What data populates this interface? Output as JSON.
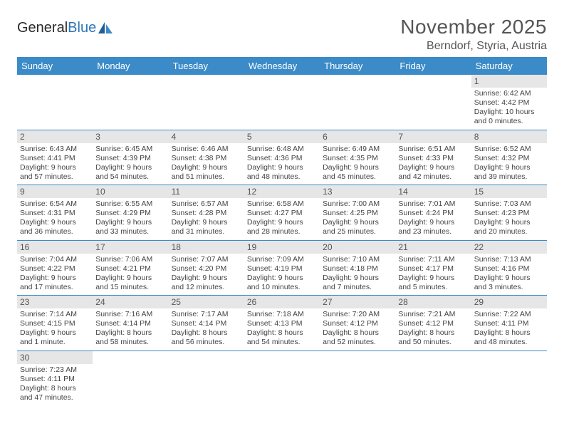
{
  "logo": {
    "text1": "General",
    "text2": "Blue"
  },
  "title": "November 2025",
  "location": "Berndorf, Styria, Austria",
  "colors": {
    "header_bg": "#3b8bc8",
    "header_text": "#ffffff",
    "daynum_bg": "#e6e6e6",
    "text": "#444444",
    "rule": "#3b8bc8"
  },
  "day_labels": [
    "Sunday",
    "Monday",
    "Tuesday",
    "Wednesday",
    "Thursday",
    "Friday",
    "Saturday"
  ],
  "weeks": [
    [
      {
        "n": "",
        "sr": "",
        "ss": "",
        "dl": ""
      },
      {
        "n": "",
        "sr": "",
        "ss": "",
        "dl": ""
      },
      {
        "n": "",
        "sr": "",
        "ss": "",
        "dl": ""
      },
      {
        "n": "",
        "sr": "",
        "ss": "",
        "dl": ""
      },
      {
        "n": "",
        "sr": "",
        "ss": "",
        "dl": ""
      },
      {
        "n": "",
        "sr": "",
        "ss": "",
        "dl": ""
      },
      {
        "n": "1",
        "sr": "Sunrise: 6:42 AM",
        "ss": "Sunset: 4:42 PM",
        "dl": "Daylight: 10 hours and 0 minutes."
      }
    ],
    [
      {
        "n": "2",
        "sr": "Sunrise: 6:43 AM",
        "ss": "Sunset: 4:41 PM",
        "dl": "Daylight: 9 hours and 57 minutes."
      },
      {
        "n": "3",
        "sr": "Sunrise: 6:45 AM",
        "ss": "Sunset: 4:39 PM",
        "dl": "Daylight: 9 hours and 54 minutes."
      },
      {
        "n": "4",
        "sr": "Sunrise: 6:46 AM",
        "ss": "Sunset: 4:38 PM",
        "dl": "Daylight: 9 hours and 51 minutes."
      },
      {
        "n": "5",
        "sr": "Sunrise: 6:48 AM",
        "ss": "Sunset: 4:36 PM",
        "dl": "Daylight: 9 hours and 48 minutes."
      },
      {
        "n": "6",
        "sr": "Sunrise: 6:49 AM",
        "ss": "Sunset: 4:35 PM",
        "dl": "Daylight: 9 hours and 45 minutes."
      },
      {
        "n": "7",
        "sr": "Sunrise: 6:51 AM",
        "ss": "Sunset: 4:33 PM",
        "dl": "Daylight: 9 hours and 42 minutes."
      },
      {
        "n": "8",
        "sr": "Sunrise: 6:52 AM",
        "ss": "Sunset: 4:32 PM",
        "dl": "Daylight: 9 hours and 39 minutes."
      }
    ],
    [
      {
        "n": "9",
        "sr": "Sunrise: 6:54 AM",
        "ss": "Sunset: 4:31 PM",
        "dl": "Daylight: 9 hours and 36 minutes."
      },
      {
        "n": "10",
        "sr": "Sunrise: 6:55 AM",
        "ss": "Sunset: 4:29 PM",
        "dl": "Daylight: 9 hours and 33 minutes."
      },
      {
        "n": "11",
        "sr": "Sunrise: 6:57 AM",
        "ss": "Sunset: 4:28 PM",
        "dl": "Daylight: 9 hours and 31 minutes."
      },
      {
        "n": "12",
        "sr": "Sunrise: 6:58 AM",
        "ss": "Sunset: 4:27 PM",
        "dl": "Daylight: 9 hours and 28 minutes."
      },
      {
        "n": "13",
        "sr": "Sunrise: 7:00 AM",
        "ss": "Sunset: 4:25 PM",
        "dl": "Daylight: 9 hours and 25 minutes."
      },
      {
        "n": "14",
        "sr": "Sunrise: 7:01 AM",
        "ss": "Sunset: 4:24 PM",
        "dl": "Daylight: 9 hours and 23 minutes."
      },
      {
        "n": "15",
        "sr": "Sunrise: 7:03 AM",
        "ss": "Sunset: 4:23 PM",
        "dl": "Daylight: 9 hours and 20 minutes."
      }
    ],
    [
      {
        "n": "16",
        "sr": "Sunrise: 7:04 AM",
        "ss": "Sunset: 4:22 PM",
        "dl": "Daylight: 9 hours and 17 minutes."
      },
      {
        "n": "17",
        "sr": "Sunrise: 7:06 AM",
        "ss": "Sunset: 4:21 PM",
        "dl": "Daylight: 9 hours and 15 minutes."
      },
      {
        "n": "18",
        "sr": "Sunrise: 7:07 AM",
        "ss": "Sunset: 4:20 PM",
        "dl": "Daylight: 9 hours and 12 minutes."
      },
      {
        "n": "19",
        "sr": "Sunrise: 7:09 AM",
        "ss": "Sunset: 4:19 PM",
        "dl": "Daylight: 9 hours and 10 minutes."
      },
      {
        "n": "20",
        "sr": "Sunrise: 7:10 AM",
        "ss": "Sunset: 4:18 PM",
        "dl": "Daylight: 9 hours and 7 minutes."
      },
      {
        "n": "21",
        "sr": "Sunrise: 7:11 AM",
        "ss": "Sunset: 4:17 PM",
        "dl": "Daylight: 9 hours and 5 minutes."
      },
      {
        "n": "22",
        "sr": "Sunrise: 7:13 AM",
        "ss": "Sunset: 4:16 PM",
        "dl": "Daylight: 9 hours and 3 minutes."
      }
    ],
    [
      {
        "n": "23",
        "sr": "Sunrise: 7:14 AM",
        "ss": "Sunset: 4:15 PM",
        "dl": "Daylight: 9 hours and 1 minute."
      },
      {
        "n": "24",
        "sr": "Sunrise: 7:16 AM",
        "ss": "Sunset: 4:14 PM",
        "dl": "Daylight: 8 hours and 58 minutes."
      },
      {
        "n": "25",
        "sr": "Sunrise: 7:17 AM",
        "ss": "Sunset: 4:14 PM",
        "dl": "Daylight: 8 hours and 56 minutes."
      },
      {
        "n": "26",
        "sr": "Sunrise: 7:18 AM",
        "ss": "Sunset: 4:13 PM",
        "dl": "Daylight: 8 hours and 54 minutes."
      },
      {
        "n": "27",
        "sr": "Sunrise: 7:20 AM",
        "ss": "Sunset: 4:12 PM",
        "dl": "Daylight: 8 hours and 52 minutes."
      },
      {
        "n": "28",
        "sr": "Sunrise: 7:21 AM",
        "ss": "Sunset: 4:12 PM",
        "dl": "Daylight: 8 hours and 50 minutes."
      },
      {
        "n": "29",
        "sr": "Sunrise: 7:22 AM",
        "ss": "Sunset: 4:11 PM",
        "dl": "Daylight: 8 hours and 48 minutes."
      }
    ],
    [
      {
        "n": "30",
        "sr": "Sunrise: 7:23 AM",
        "ss": "Sunset: 4:11 PM",
        "dl": "Daylight: 8 hours and 47 minutes."
      },
      {
        "n": "",
        "sr": "",
        "ss": "",
        "dl": ""
      },
      {
        "n": "",
        "sr": "",
        "ss": "",
        "dl": ""
      },
      {
        "n": "",
        "sr": "",
        "ss": "",
        "dl": ""
      },
      {
        "n": "",
        "sr": "",
        "ss": "",
        "dl": ""
      },
      {
        "n": "",
        "sr": "",
        "ss": "",
        "dl": ""
      },
      {
        "n": "",
        "sr": "",
        "ss": "",
        "dl": ""
      }
    ]
  ]
}
